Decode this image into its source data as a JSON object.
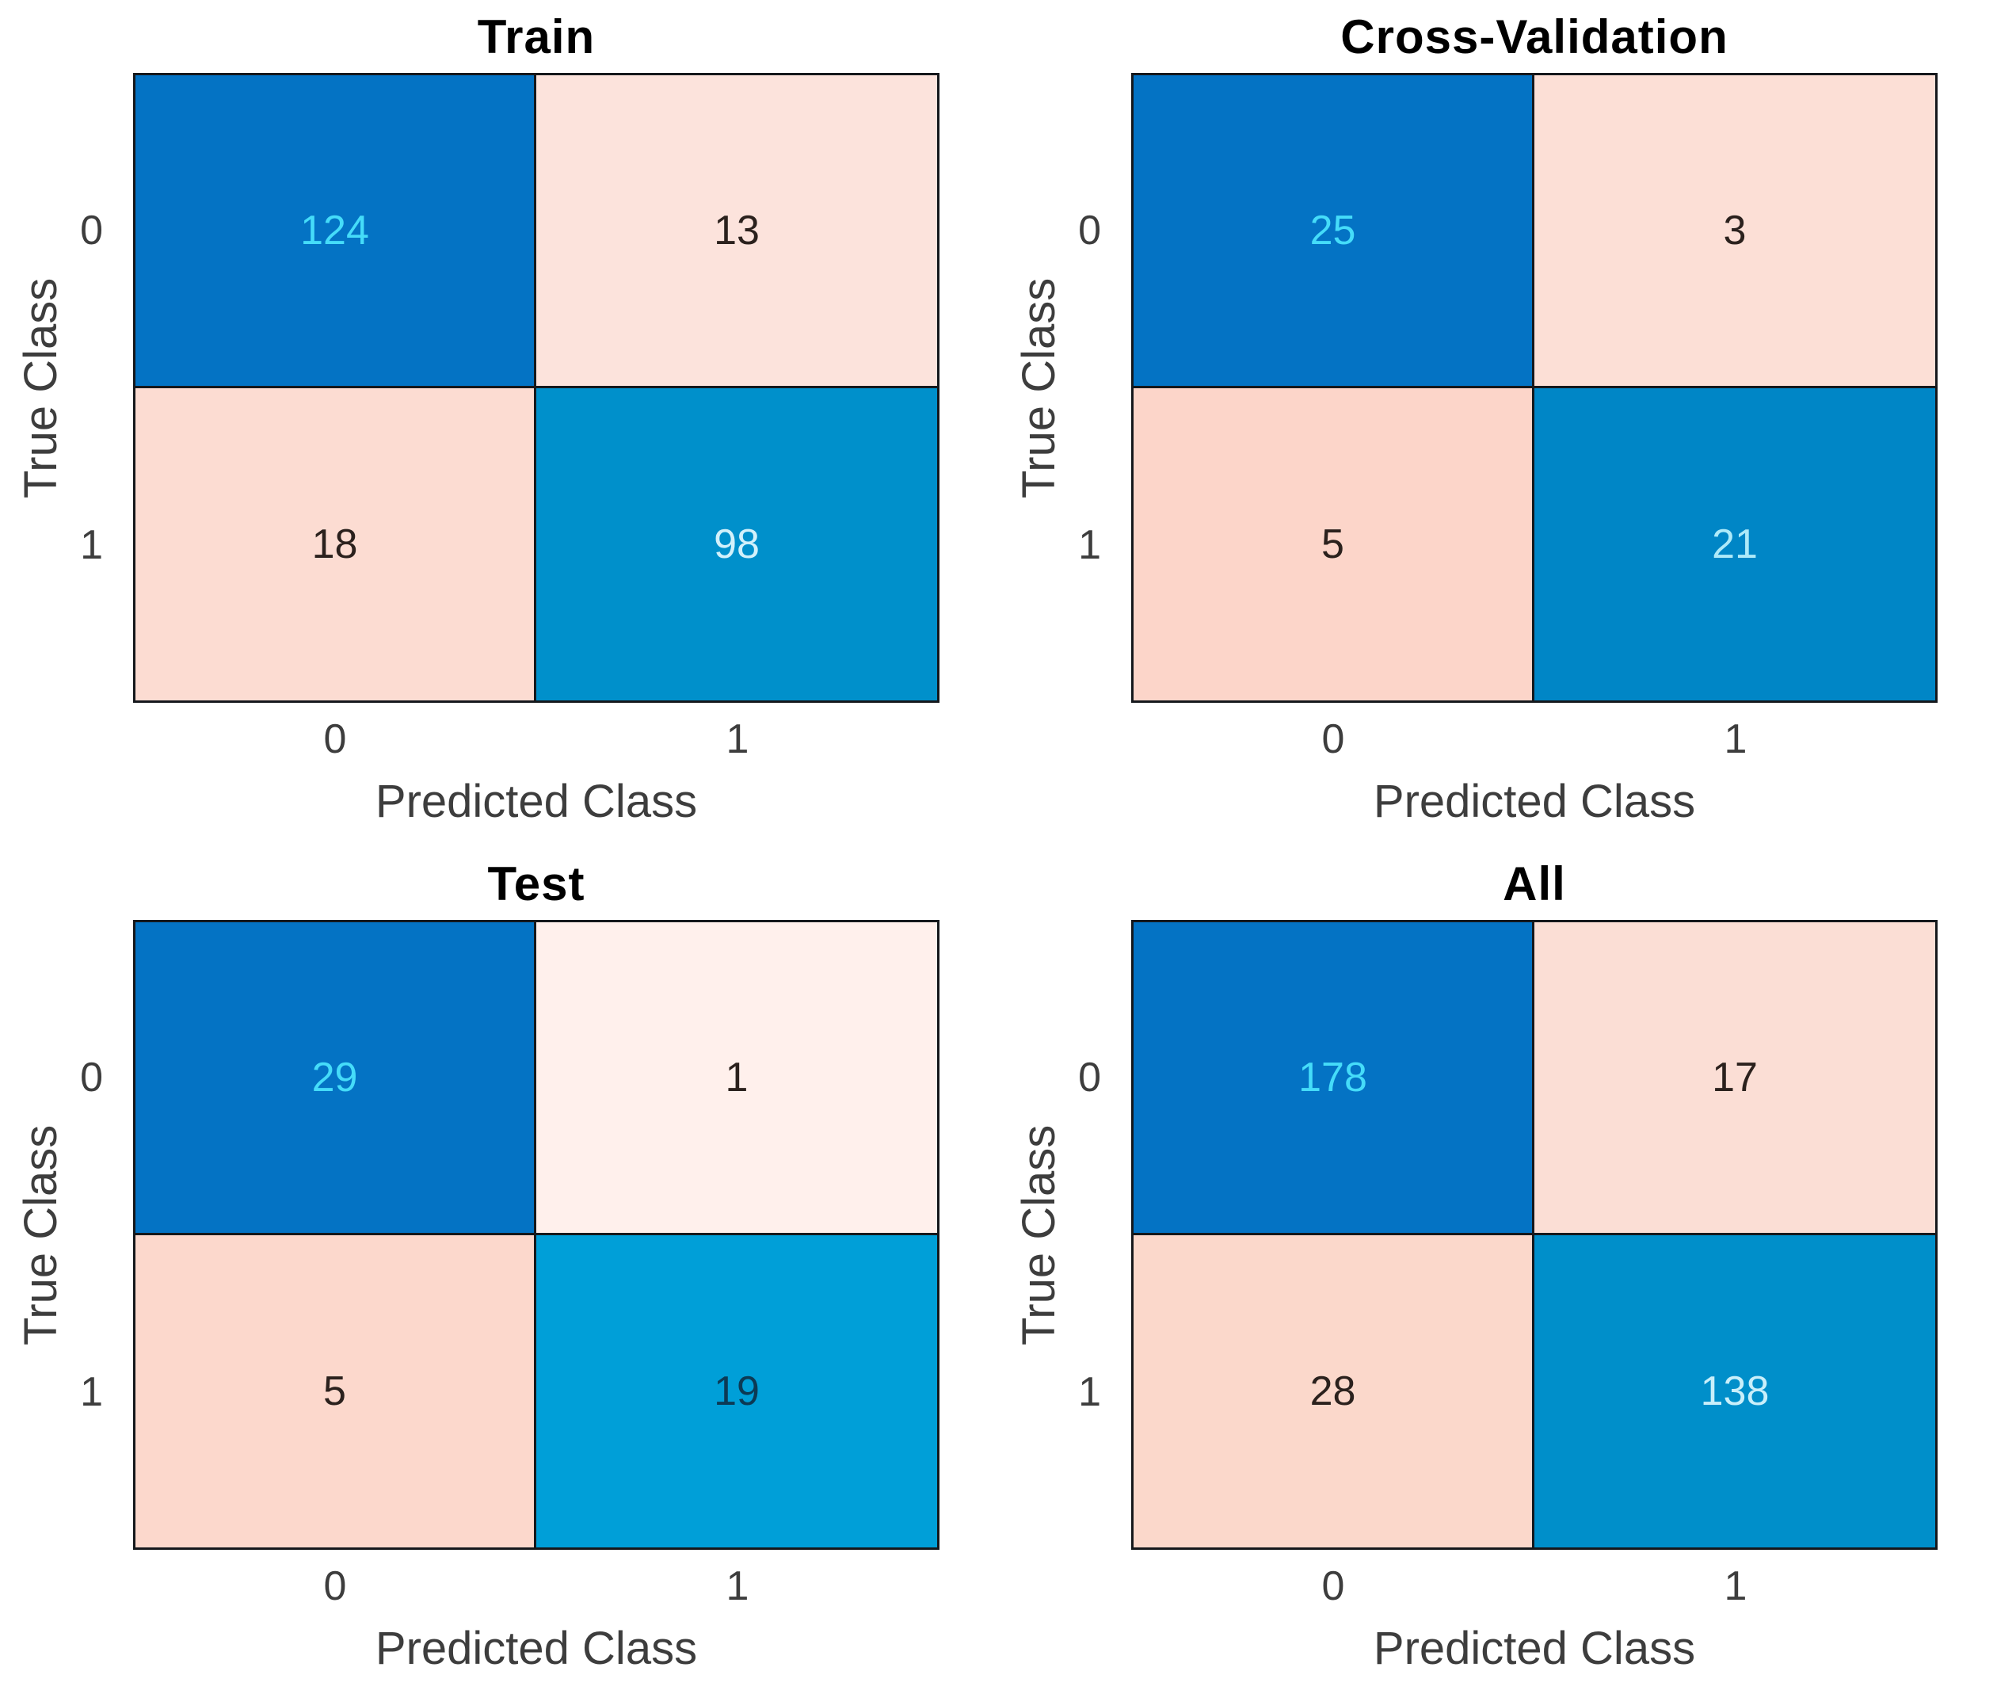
{
  "figure": {
    "background": "#ffffff",
    "cell_border_color": "#15181c",
    "tick_color": "#3d3d3d",
    "title_color": "#000000",
    "diagonal_blue": "#0473c4",
    "offdiagonal_pink": "#fcdcd2"
  },
  "chart_data": [
    {
      "type": "heatmap",
      "title": "Train",
      "xlabel": "Predicted Class",
      "ylabel": "True Class",
      "x_tick_labels": [
        "0",
        "1"
      ],
      "y_tick_labels": [
        "0",
        "1"
      ],
      "matrix": [
        [
          124,
          13
        ],
        [
          18,
          98
        ]
      ],
      "cells": [
        {
          "row": "0",
          "col": "0",
          "value": "124",
          "bg": "#0473c4",
          "fg": "#45dcf9"
        },
        {
          "row": "0",
          "col": "1",
          "value": "13",
          "bg": "#fce3dc",
          "fg": "#2b211d"
        },
        {
          "row": "1",
          "col": "0",
          "value": "18",
          "bg": "#fcdcd2",
          "fg": "#2b211d"
        },
        {
          "row": "1",
          "col": "1",
          "value": "98",
          "bg": "#0090cb",
          "fg": "#d2f1fb"
        }
      ]
    },
    {
      "type": "heatmap",
      "title": "Cross-Validation",
      "xlabel": "Predicted Class",
      "ylabel": "True Class",
      "x_tick_labels": [
        "0",
        "1"
      ],
      "y_tick_labels": [
        "0",
        "1"
      ],
      "matrix": [
        [
          25,
          3
        ],
        [
          5,
          21
        ]
      ],
      "cells": [
        {
          "row": "0",
          "col": "0",
          "value": "25",
          "bg": "#0473c4",
          "fg": "#45dcf9"
        },
        {
          "row": "0",
          "col": "1",
          "value": "3",
          "bg": "#fcdfd6",
          "fg": "#2b211d"
        },
        {
          "row": "1",
          "col": "0",
          "value": "5",
          "bg": "#fcd5c9",
          "fg": "#2b211d"
        },
        {
          "row": "1",
          "col": "1",
          "value": "21",
          "bg": "#0086c6",
          "fg": "#aeeaf9"
        }
      ]
    },
    {
      "type": "heatmap",
      "title": "Test",
      "xlabel": "Predicted Class",
      "ylabel": "True Class",
      "x_tick_labels": [
        "0",
        "1"
      ],
      "y_tick_labels": [
        "0",
        "1"
      ],
      "matrix": [
        [
          29,
          1
        ],
        [
          5,
          19
        ]
      ],
      "cells": [
        {
          "row": "0",
          "col": "0",
          "value": "29",
          "bg": "#0473c4",
          "fg": "#45dcf9"
        },
        {
          "row": "0",
          "col": "1",
          "value": "1",
          "bg": "#fff0ec",
          "fg": "#2b211d"
        },
        {
          "row": "1",
          "col": "0",
          "value": "5",
          "bg": "#fcd8cc",
          "fg": "#2b211d"
        },
        {
          "row": "1",
          "col": "1",
          "value": "19",
          "bg": "#009fd8",
          "fg": "#0c3a55"
        }
      ]
    },
    {
      "type": "heatmap",
      "title": "All",
      "xlabel": "Predicted Class",
      "ylabel": "True Class",
      "x_tick_labels": [
        "0",
        "1"
      ],
      "y_tick_labels": [
        "0",
        "1"
      ],
      "matrix": [
        [
          178,
          17
        ],
        [
          28,
          138
        ]
      ],
      "cells": [
        {
          "row": "0",
          "col": "0",
          "value": "178",
          "bg": "#0473c4",
          "fg": "#45dcf9"
        },
        {
          "row": "0",
          "col": "1",
          "value": "17",
          "bg": "#fbded5",
          "fg": "#2b211d"
        },
        {
          "row": "1",
          "col": "0",
          "value": "28",
          "bg": "#fbd8cb",
          "fg": "#2b211d"
        },
        {
          "row": "1",
          "col": "1",
          "value": "138",
          "bg": "#008fca",
          "fg": "#c9effa"
        }
      ]
    }
  ]
}
